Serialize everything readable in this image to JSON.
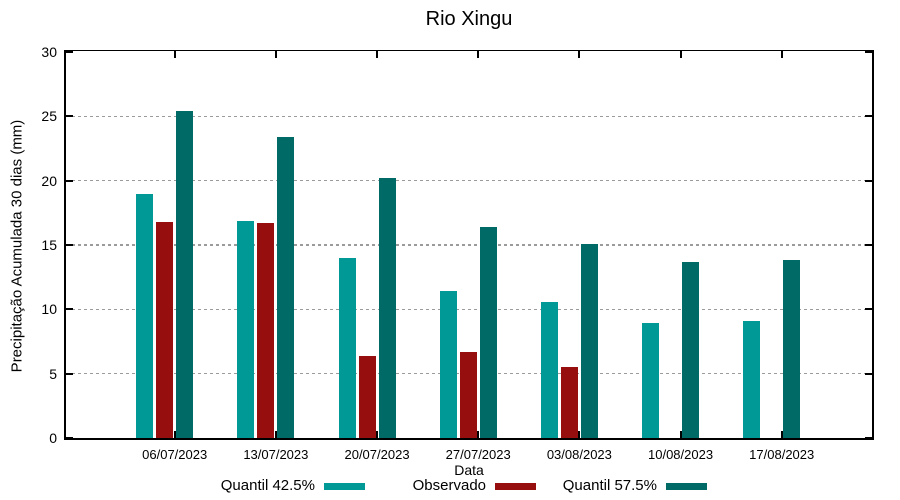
{
  "chart_data": {
    "type": "bar",
    "title": "Rio Xingu",
    "xlabel": "Data",
    "ylabel": "Precipitação Acumulada 30 dias (mm)",
    "categories": [
      "06/07/2023",
      "13/07/2023",
      "20/07/2023",
      "27/07/2023",
      "03/08/2023",
      "10/08/2023",
      "17/08/2023"
    ],
    "series": [
      {
        "name": "Quantil 42.5%",
        "color": "#009996",
        "values": [
          19.0,
          16.9,
          14.0,
          11.4,
          10.6,
          8.9,
          9.1
        ]
      },
      {
        "name": "Observado",
        "color": "#970E0E",
        "values": [
          16.8,
          16.7,
          6.4,
          6.7,
          5.5,
          null,
          null
        ]
      },
      {
        "name": "Quantil 57.5%",
        "color": "#006A66",
        "values": [
          25.4,
          23.4,
          20.2,
          16.4,
          15.1,
          13.7,
          13.8
        ]
      }
    ],
    "ylim": [
      0,
      30
    ],
    "ytick_step": 5,
    "grid": true,
    "legend_position": "bottom",
    "axis_color": "#000000",
    "grid_color": "#9b9b9b"
  }
}
